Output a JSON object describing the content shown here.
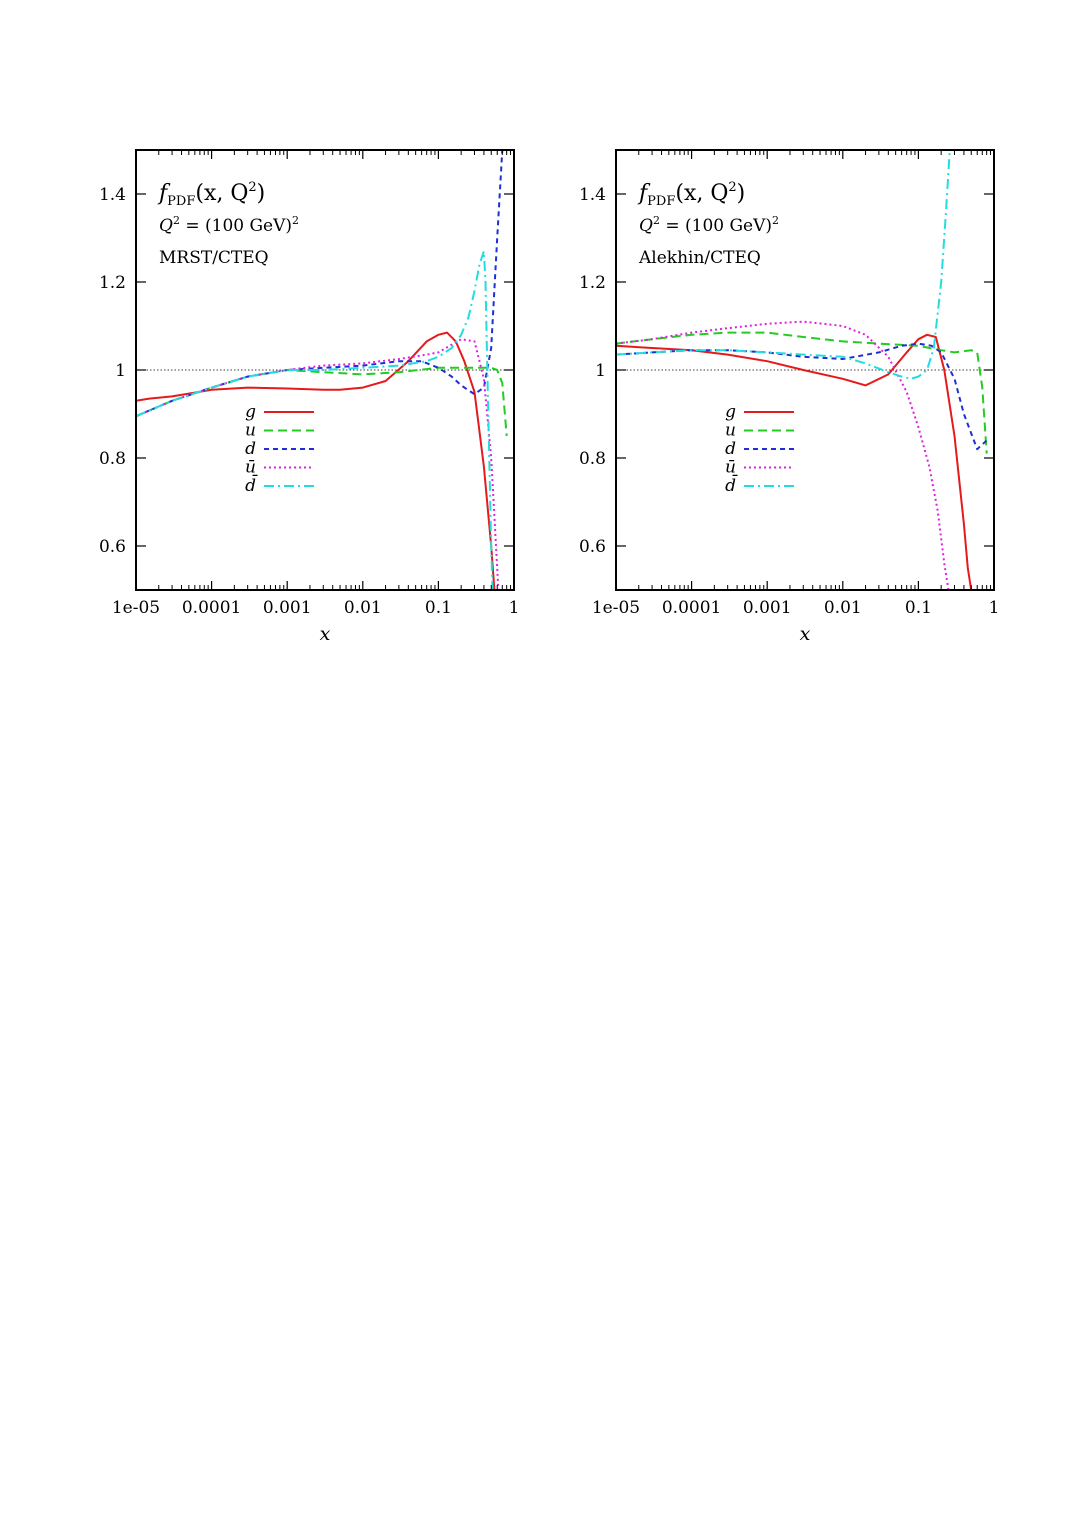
{
  "chart_data": [
    {
      "type": "line",
      "title_prefix": "f",
      "title_subscript": "PDF",
      "title_args": "(x, Q",
      "title_sup": "2",
      "title_close": ")",
      "subtitle_prefix": "Q",
      "subtitle_sup": "2",
      "subtitle_mid": " = (100 GeV)",
      "subtitle_sup2": "2",
      "dataset_label": "MRST/CTEQ",
      "xlabel": "x",
      "ylabel": "",
      "xscale": "log",
      "xlim": [
        1e-05,
        1
      ],
      "ylim": [
        0.5,
        1.5
      ],
      "x_ticks": [
        1e-05,
        0.0001,
        0.001,
        0.01,
        0.1,
        1
      ],
      "x_tick_labels": [
        "1e-05",
        "0.0001",
        "0.001",
        "0.01",
        "0.1",
        "1"
      ],
      "y_ticks": [
        0.6,
        0.8,
        1.0,
        1.2,
        1.4
      ],
      "y_tick_labels": [
        "0.6",
        "0.8",
        "1",
        "1.2",
        "1.4"
      ],
      "reference_line": 1.0,
      "legend_position": "lower-left",
      "series": [
        {
          "name": "g",
          "color": "#e41a1c",
          "dash": "solid",
          "x": [
            1e-05,
            1.5e-05,
            3e-05,
            0.0001,
            0.0003,
            0.001,
            0.003,
            0.005,
            0.01,
            0.02,
            0.04,
            0.07,
            0.1,
            0.13,
            0.17,
            0.22,
            0.3,
            0.4,
            0.5,
            0.55
          ],
          "y": [
            0.93,
            0.935,
            0.94,
            0.955,
            0.96,
            0.958,
            0.955,
            0.955,
            0.96,
            0.975,
            1.02,
            1.065,
            1.08,
            1.085,
            1.065,
            1.02,
            0.95,
            0.78,
            0.6,
            0.5
          ]
        },
        {
          "name": "u",
          "color": "#22cc22",
          "dash": "dashed",
          "x": [
            1e-05,
            3e-05,
            0.0001,
            0.0003,
            0.001,
            0.003,
            0.01,
            0.03,
            0.1,
            0.2,
            0.3,
            0.5,
            0.6,
            0.7,
            0.8
          ],
          "y": [
            0.895,
            0.93,
            0.96,
            0.985,
            1.0,
            0.995,
            0.99,
            0.995,
            1.005,
            1.005,
            1.005,
            1.005,
            1.0,
            0.97,
            0.85
          ]
        },
        {
          "name": "d",
          "color": "#1f2fd6",
          "dash": "short-dashed",
          "x": [
            1e-05,
            3e-05,
            0.0001,
            0.0003,
            0.001,
            0.003,
            0.01,
            0.03,
            0.06,
            0.1,
            0.15,
            0.2,
            0.3,
            0.4,
            0.5,
            0.6,
            0.7
          ],
          "y": [
            0.895,
            0.93,
            0.96,
            0.985,
            1.0,
            1.005,
            1.01,
            1.02,
            1.02,
            1.005,
            0.985,
            0.965,
            0.945,
            0.96,
            1.05,
            1.3,
            1.5
          ]
        },
        {
          "name": "ū",
          "color": "#e020e0",
          "dash": "dotted",
          "x": [
            1e-05,
            3e-05,
            0.0001,
            0.0003,
            0.001,
            0.003,
            0.01,
            0.03,
            0.07,
            0.1,
            0.2,
            0.3,
            0.4,
            0.5,
            0.6,
            0.62
          ],
          "y": [
            0.895,
            0.93,
            0.96,
            0.985,
            1.0,
            1.01,
            1.015,
            1.025,
            1.035,
            1.04,
            1.07,
            1.065,
            0.98,
            0.8,
            0.55,
            0.5
          ]
        },
        {
          "name": "d̄",
          "color": "#22dddd",
          "dash": "dash-dot",
          "x": [
            1e-05,
            3e-05,
            0.0001,
            0.0003,
            0.001,
            0.003,
            0.01,
            0.03,
            0.07,
            0.1,
            0.15,
            0.2,
            0.25,
            0.3,
            0.35,
            0.4,
            0.42,
            0.45,
            0.5,
            0.52
          ],
          "y": [
            0.895,
            0.93,
            0.96,
            0.985,
            1.0,
            1.0,
            1.005,
            1.01,
            1.02,
            1.03,
            1.05,
            1.08,
            1.12,
            1.18,
            1.24,
            1.27,
            1.2,
            0.95,
            0.6,
            0.5
          ]
        }
      ]
    },
    {
      "type": "line",
      "title_prefix": "f",
      "title_subscript": "PDF",
      "title_args": "(x, Q",
      "title_sup": "2",
      "title_close": ")",
      "subtitle_prefix": "Q",
      "subtitle_sup": "2",
      "subtitle_mid": " = (100 GeV)",
      "subtitle_sup2": "2",
      "dataset_label": "Alekhin/CTEQ",
      "xlabel": "x",
      "ylabel": "",
      "xscale": "log",
      "xlim": [
        1e-05,
        1
      ],
      "ylim": [
        0.5,
        1.5
      ],
      "x_ticks": [
        1e-05,
        0.0001,
        0.001,
        0.01,
        0.1,
        1
      ],
      "x_tick_labels": [
        "1e-05",
        "0.0001",
        "0.001",
        "0.01",
        "0.1",
        "1"
      ],
      "y_ticks": [
        0.6,
        0.8,
        1.0,
        1.2,
        1.4
      ],
      "y_tick_labels": [
        "0.6",
        "0.8",
        "1",
        "1.2",
        "1.4"
      ],
      "reference_line": 1.0,
      "legend_position": "lower-left",
      "series": [
        {
          "name": "g",
          "color": "#e41a1c",
          "dash": "solid",
          "x": [
            1e-05,
            3e-05,
            0.0001,
            0.0003,
            0.001,
            0.003,
            0.01,
            0.02,
            0.04,
            0.07,
            0.1,
            0.13,
            0.17,
            0.22,
            0.3,
            0.4,
            0.45,
            0.5
          ],
          "y": [
            1.055,
            1.05,
            1.045,
            1.035,
            1.02,
            1.0,
            0.98,
            0.965,
            0.99,
            1.04,
            1.07,
            1.08,
            1.075,
            1.0,
            0.85,
            0.65,
            0.55,
            0.5
          ]
        },
        {
          "name": "u",
          "color": "#22cc22",
          "dash": "dashed",
          "x": [
            1e-05,
            3e-05,
            0.0001,
            0.0003,
            0.001,
            0.003,
            0.01,
            0.03,
            0.1,
            0.2,
            0.3,
            0.5,
            0.6,
            0.7,
            0.8
          ],
          "y": [
            1.06,
            1.07,
            1.08,
            1.085,
            1.085,
            1.075,
            1.065,
            1.06,
            1.055,
            1.045,
            1.04,
            1.045,
            1.04,
            0.96,
            0.81
          ]
        },
        {
          "name": "d",
          "color": "#1f2fd6",
          "dash": "short-dashed",
          "x": [
            1e-05,
            3e-05,
            0.0001,
            0.0003,
            0.001,
            0.003,
            0.01,
            0.03,
            0.06,
            0.1,
            0.15,
            0.2,
            0.3,
            0.4,
            0.6,
            0.8
          ],
          "y": [
            1.035,
            1.04,
            1.045,
            1.045,
            1.04,
            1.03,
            1.025,
            1.04,
            1.055,
            1.06,
            1.055,
            1.04,
            0.98,
            0.9,
            0.82,
            0.84
          ]
        },
        {
          "name": "ū",
          "color": "#e020e0",
          "dash": "dotted",
          "x": [
            1e-05,
            3e-05,
            0.0001,
            0.0003,
            0.001,
            0.003,
            0.01,
            0.02,
            0.04,
            0.07,
            0.1,
            0.14,
            0.18,
            0.22,
            0.25
          ],
          "y": [
            1.06,
            1.07,
            1.085,
            1.095,
            1.105,
            1.11,
            1.1,
            1.08,
            1.03,
            0.95,
            0.87,
            0.78,
            0.68,
            0.56,
            0.5
          ]
        },
        {
          "name": "d̄",
          "color": "#22dddd",
          "dash": "dash-dot",
          "x": [
            1e-05,
            3e-05,
            0.0001,
            0.0003,
            0.001,
            0.003,
            0.01,
            0.02,
            0.04,
            0.06,
            0.08,
            0.1,
            0.13,
            0.16,
            0.2,
            0.23,
            0.26
          ],
          "y": [
            1.035,
            1.04,
            1.045,
            1.045,
            1.04,
            1.035,
            1.03,
            1.015,
            0.995,
            0.985,
            0.98,
            0.985,
            1.0,
            1.05,
            1.2,
            1.35,
            1.5
          ]
        }
      ]
    }
  ]
}
